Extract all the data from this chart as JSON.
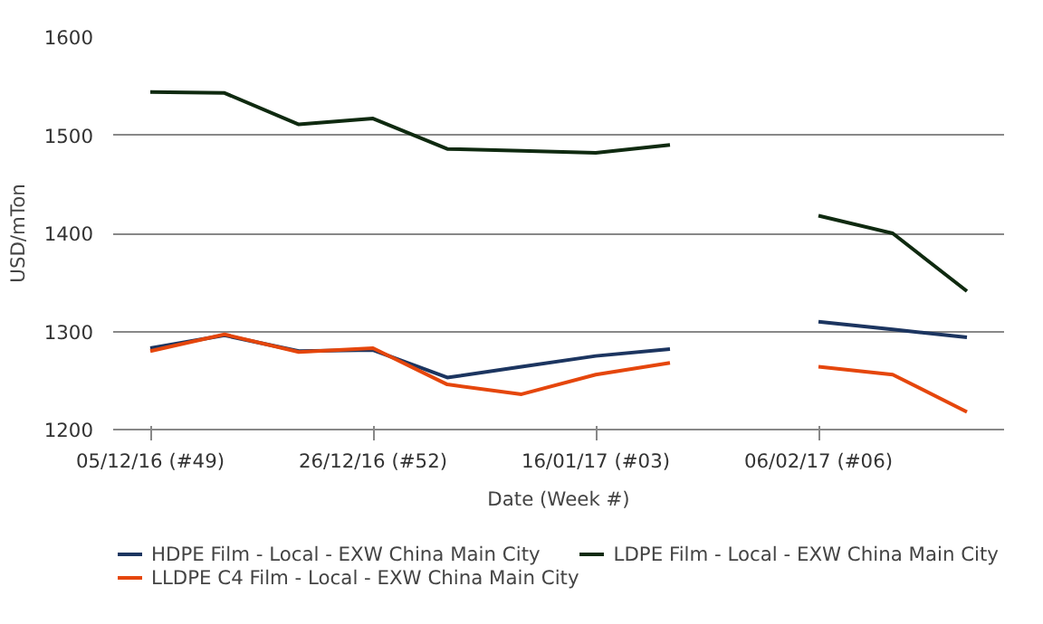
{
  "chart_data": {
    "type": "line",
    "xlabel": "Date (Week #)",
    "ylabel": "USD/mTon",
    "x": [
      "2016-12-05",
      "2016-12-12",
      "2016-12-19",
      "2016-12-26",
      "2017-01-02",
      "2017-01-09",
      "2017-01-16",
      "2017-01-23",
      "2017-01-30",
      "2017-02-06",
      "2017-02-13",
      "2017-02-20"
    ],
    "series": [
      {
        "name": "HDPE Film - Local - EXW China Main City",
        "color": "#1c3560",
        "values": [
          1283,
          1296,
          1280,
          1281,
          1253,
          1264,
          1275,
          1282,
          null,
          1310,
          1302,
          1294
        ]
      },
      {
        "name": "LLDPE C4 Film - Local - EXW China Main City",
        "color": "#e5460c",
        "values": [
          1280,
          1297,
          1279,
          1283,
          1246,
          1236,
          1256,
          1268,
          null,
          1264,
          1256,
          1218
        ]
      },
      {
        "name": "LDPE Film - Local - EXW China Main City",
        "color": "#0f2a10",
        "values": [
          1544,
          1543,
          1511,
          1517,
          1486,
          1484,
          1482,
          1490,
          null,
          1418,
          1400,
          1341
        ]
      }
    ],
    "xlim": [
      "2016-12-01T12:00",
      "2017-02-23T12:00"
    ],
    "xticks": [
      {
        "value": "2016-12-05",
        "label": "05/12/16 (#49)"
      },
      {
        "value": "2016-12-26",
        "label": "26/12/16 (#52)"
      },
      {
        "value": "2017-01-16",
        "label": "16/01/17 (#03)"
      },
      {
        "value": "2017-02-06",
        "label": "06/02/17 (#06)"
      }
    ],
    "ylim": [
      1200,
      1600
    ],
    "yticks": [
      1200,
      1300,
      1400,
      1500,
      1600
    ],
    "grid": "y",
    "legend": "bottom",
    "marker": "none",
    "line_style": "solid"
  }
}
